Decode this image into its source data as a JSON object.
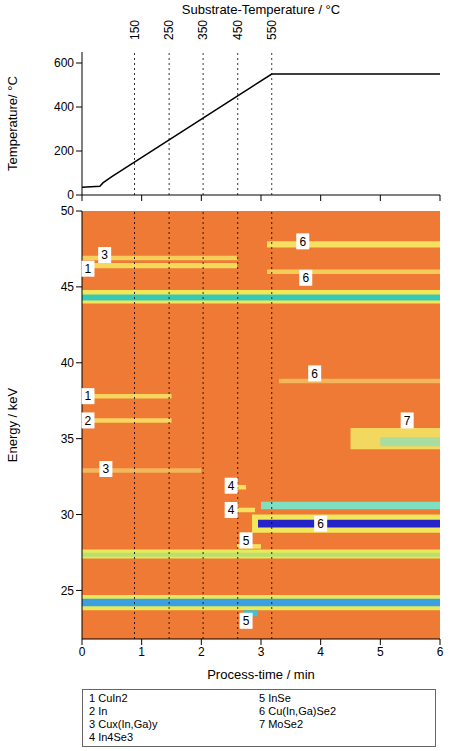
{
  "chart_data": [
    {
      "type": "line",
      "x2label": "Substrate-Temperature / °C",
      "ylabel": "Temperature/ °C",
      "x": [
        0,
        0.3,
        0.35,
        0.5,
        3.18,
        6
      ],
      "values": [
        35,
        40,
        55,
        84,
        550,
        550
      ],
      "color": "#000000",
      "xlim": [
        0,
        6
      ],
      "xticks": [
        0,
        1,
        2,
        3,
        4,
        5,
        6
      ],
      "ylim": [
        0,
        650
      ],
      "yticks": [
        0,
        200,
        400,
        600
      ],
      "x2ticks": [
        {
          "value": 0.88,
          "label": "150"
        },
        {
          "value": 1.46,
          "label": "250"
        },
        {
          "value": 2.03,
          "label": "350"
        },
        {
          "value": 2.61,
          "label": "450"
        },
        {
          "value": 3.18,
          "label": "550"
        }
      ],
      "tick_labels": "y"
    },
    {
      "type": "heatmap",
      "xlabel": "Process-time / min",
      "ylabel": "Energy / keV",
      "color": "#ee7a35",
      "xlim": [
        0,
        6
      ],
      "xticks": [
        0,
        1,
        2,
        3,
        4,
        5,
        6
      ],
      "ylim": [
        21.8,
        50
      ],
      "yticks": [
        25,
        30,
        35,
        40,
        45,
        50
      ],
      "bands": [
        {
          "energy": 46.4,
          "start": 0,
          "end": 2.6,
          "width": 0.35,
          "color": "#f6d85a"
        },
        {
          "energy": 46.9,
          "start": 0,
          "end": 2.6,
          "width": 0.3,
          "color": "#f5cf5a"
        },
        {
          "energy": 44.35,
          "start": 0,
          "end": 6,
          "width": 0.9,
          "color": "#f2e65a"
        },
        {
          "energy": 44.3,
          "start": 0,
          "end": 6,
          "width": 0.4,
          "color": "#36c9b5"
        },
        {
          "energy": 37.8,
          "start": 0,
          "end": 1.5,
          "width": 0.3,
          "color": "#f7d55e"
        },
        {
          "energy": 36.2,
          "start": 0,
          "end": 1.5,
          "width": 0.3,
          "color": "#f7d55e"
        },
        {
          "energy": 32.9,
          "start": 0,
          "end": 2.0,
          "width": 0.3,
          "color": "#f3b65a"
        },
        {
          "energy": 31.8,
          "start": 2.5,
          "end": 2.75,
          "width": 0.3,
          "color": "#f5e060"
        },
        {
          "energy": 30.3,
          "start": 2.5,
          "end": 2.9,
          "width": 0.3,
          "color": "#f5e060"
        },
        {
          "energy": 29.4,
          "start": 2.85,
          "end": 6,
          "width": 1.2,
          "color": "#f2e65a"
        },
        {
          "energy": 30.6,
          "start": 3.0,
          "end": 6,
          "width": 0.5,
          "color": "#7ee0c0"
        },
        {
          "energy": 29.4,
          "start": 2.95,
          "end": 6,
          "width": 0.5,
          "color": "#2424c8"
        },
        {
          "energy": 27.9,
          "start": 2.6,
          "end": 3.0,
          "width": 0.3,
          "color": "#f5e060"
        },
        {
          "energy": 27.4,
          "start": 0,
          "end": 6,
          "width": 0.6,
          "color": "#e8e85a"
        },
        {
          "energy": 27.35,
          "start": 0,
          "end": 6,
          "width": 0.25,
          "color": "#b8e070"
        },
        {
          "energy": 24.2,
          "start": 0,
          "end": 6,
          "width": 1.0,
          "color": "#e8e85a"
        },
        {
          "energy": 24.2,
          "start": 0,
          "end": 6,
          "width": 0.5,
          "color": "#3aa0e0"
        },
        {
          "energy": 23.5,
          "start": 2.7,
          "end": 2.95,
          "width": 0.4,
          "color": "#40c0d0"
        },
        {
          "energy": 47.8,
          "start": 3.1,
          "end": 6,
          "width": 0.4,
          "color": "#f5e060"
        },
        {
          "energy": 46.0,
          "start": 3.1,
          "end": 6,
          "width": 0.3,
          "color": "#f3cc5a"
        },
        {
          "energy": 38.8,
          "start": 3.3,
          "end": 6,
          "width": 0.3,
          "color": "#f3b65a"
        },
        {
          "energy": 35.0,
          "start": 4.5,
          "end": 6,
          "width": 1.4,
          "color": "#f3d860"
        },
        {
          "energy": 34.8,
          "start": 5.0,
          "end": 6,
          "width": 0.6,
          "color": "#a8dca0"
        }
      ],
      "annotations": [
        {
          "text": "1",
          "x": 0.1,
          "y": 46.2
        },
        {
          "text": "3",
          "x": 0.38,
          "y": 47.1
        },
        {
          "text": "6",
          "x": 3.7,
          "y": 48.0
        },
        {
          "text": "6",
          "x": 3.75,
          "y": 45.6
        },
        {
          "text": "1",
          "x": 0.1,
          "y": 37.8
        },
        {
          "text": "2",
          "x": 0.1,
          "y": 36.2
        },
        {
          "text": "3",
          "x": 0.4,
          "y": 33.0
        },
        {
          "text": "6",
          "x": 3.9,
          "y": 39.3
        },
        {
          "text": "7",
          "x": 5.45,
          "y": 36.2
        },
        {
          "text": "4",
          "x": 2.5,
          "y": 31.9
        },
        {
          "text": "4",
          "x": 2.5,
          "y": 30.3
        },
        {
          "text": "6",
          "x": 4.0,
          "y": 29.4
        },
        {
          "text": "5",
          "x": 2.75,
          "y": 28.3
        },
        {
          "text": "5",
          "x": 2.75,
          "y": 23.0
        }
      ],
      "phases": [
        {
          "id": "1",
          "name": "CuIn2"
        },
        {
          "id": "2",
          "name": "In"
        },
        {
          "id": "3",
          "name": "Cux(In,Ga)y"
        },
        {
          "id": "4",
          "name": "In4Se3"
        },
        {
          "id": "5",
          "name": "InSe"
        },
        {
          "id": "6",
          "name": "Cu(In,Ga)Se2"
        },
        {
          "id": "7",
          "name": "MoSe2"
        }
      ],
      "legend": "bottom"
    }
  ]
}
